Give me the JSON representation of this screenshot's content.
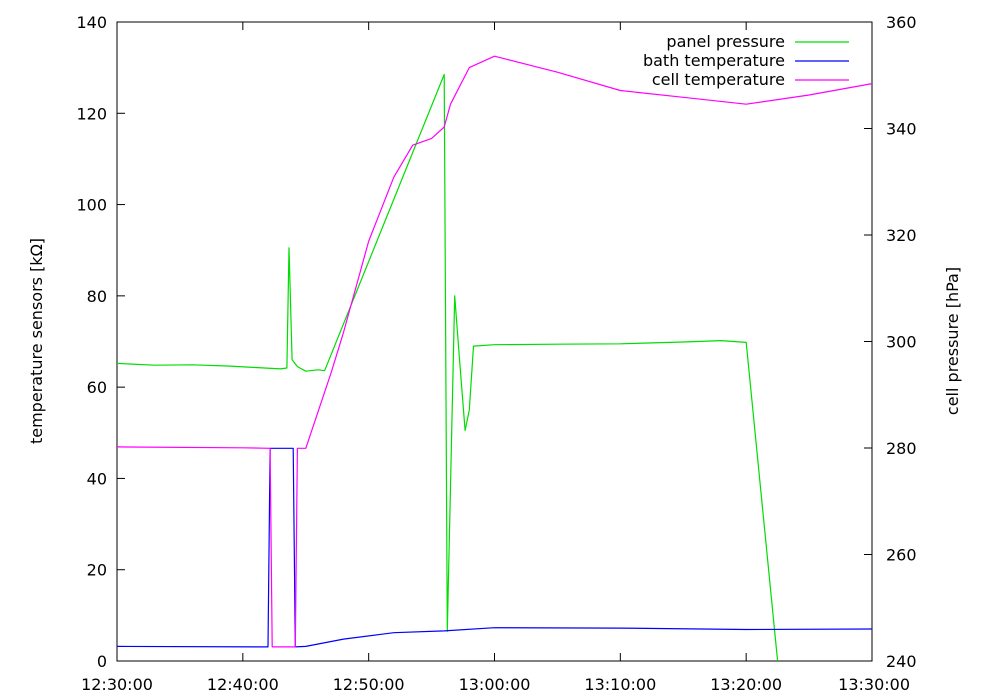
{
  "chart_data": {
    "type": "line",
    "x_unit": "time (HH:MM:SS)",
    "x_ticks": [
      "12:30:00",
      "12:40:00",
      "12:50:00",
      "13:00:00",
      "13:10:00",
      "13:20:00",
      "13:30:00"
    ],
    "x_range": [
      "12:30:00",
      "13:30:00"
    ],
    "y_left": {
      "label": "temperature sensors [kΩ]",
      "range": [
        0,
        140
      ],
      "ticks": [
        0,
        20,
        40,
        60,
        80,
        100,
        120,
        140
      ]
    },
    "y_right": {
      "label": "cell pressure [hPa]",
      "range": [
        240,
        360
      ],
      "ticks": [
        240,
        260,
        280,
        300,
        320,
        340,
        360
      ]
    },
    "grid": false,
    "legend_position": "top-right",
    "series": [
      {
        "name": "panel pressure",
        "color": "#00dd00",
        "axis": "left",
        "points": [
          [
            "12:30:00",
            65.2
          ],
          [
            "12:33:00",
            64.8
          ],
          [
            "12:36:00",
            64.9
          ],
          [
            "12:39:00",
            64.6
          ],
          [
            "12:41:00",
            64.3
          ],
          [
            "12:43:00",
            64.0
          ],
          [
            "12:43:30",
            64.2
          ],
          [
            "12:43:40",
            90.5
          ],
          [
            "12:43:55",
            66.0
          ],
          [
            "12:44:20",
            64.5
          ],
          [
            "12:45:00",
            63.5
          ],
          [
            "12:46:00",
            63.8
          ],
          [
            "12:46:30",
            63.6
          ],
          [
            "12:56:00",
            128.5
          ],
          [
            "12:56:15",
            6.5
          ],
          [
            "12:56:50",
            80.0
          ],
          [
            "12:57:15",
            65.0
          ],
          [
            "12:57:40",
            50.5
          ],
          [
            "12:58:00",
            55.0
          ],
          [
            "12:58:20",
            69.0
          ],
          [
            "13:00:00",
            69.3
          ],
          [
            "13:05:00",
            69.4
          ],
          [
            "13:10:00",
            69.5
          ],
          [
            "13:15:00",
            69.9
          ],
          [
            "13:18:00",
            70.2
          ],
          [
            "13:20:00",
            69.8
          ],
          [
            "13:22:30",
            0
          ]
        ]
      },
      {
        "name": "bath temperature",
        "color": "#0000ff",
        "axis": "left",
        "points": [
          [
            "12:30:00",
            3.2
          ],
          [
            "12:42:00",
            3.1
          ],
          [
            "12:42:10",
            46.6
          ],
          [
            "12:44:00",
            46.6
          ],
          [
            "12:44:10",
            3.1
          ],
          [
            "12:45:00",
            3.2
          ],
          [
            "12:48:00",
            4.8
          ],
          [
            "12:52:00",
            6.2
          ],
          [
            "12:56:00",
            6.6
          ],
          [
            "13:00:00",
            7.3
          ],
          [
            "13:10:00",
            7.2
          ],
          [
            "13:20:00",
            6.9
          ],
          [
            "13:30:00",
            7.0
          ]
        ]
      },
      {
        "name": "cell temperature",
        "color": "#ff00ff",
        "axis": "left",
        "points": [
          [
            "12:30:00",
            46.9
          ],
          [
            "12:40:00",
            46.7
          ],
          [
            "12:42:10",
            46.6
          ],
          [
            "12:42:20",
            3.1
          ],
          [
            "12:44:10",
            3.1
          ],
          [
            "12:44:20",
            46.6
          ],
          [
            "12:45:00",
            46.6
          ],
          [
            "12:47:00",
            63.0
          ],
          [
            "12:48:00",
            72.0
          ],
          [
            "12:50:00",
            92.0
          ],
          [
            "12:52:00",
            106.0
          ],
          [
            "12:53:30",
            113.0
          ],
          [
            "12:55:00",
            114.5
          ],
          [
            "12:56:00",
            117.0
          ],
          [
            "12:56:30",
            122.0
          ],
          [
            "12:58:00",
            130.0
          ],
          [
            "13:00:00",
            132.5
          ],
          [
            "13:05:00",
            129.0
          ],
          [
            "13:10:00",
            125.0
          ],
          [
            "13:15:00",
            123.5
          ],
          [
            "13:20:00",
            122.0
          ],
          [
            "13:25:00",
            124.0
          ],
          [
            "13:30:00",
            126.5
          ]
        ]
      }
    ]
  }
}
